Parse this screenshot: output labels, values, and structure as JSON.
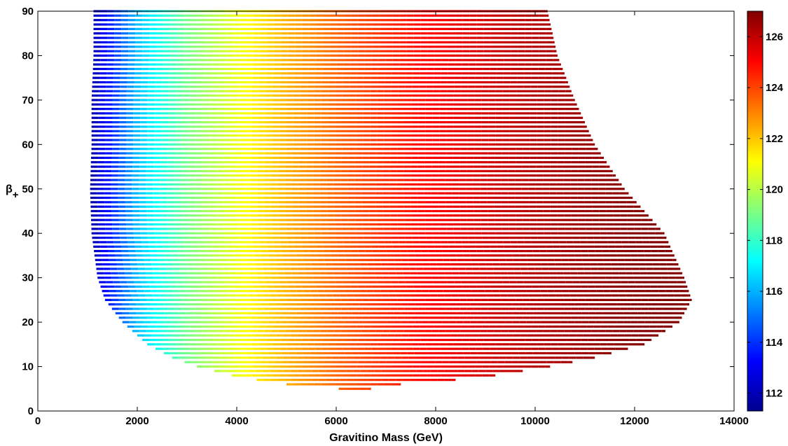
{
  "chart_data": {
    "type": "scatter",
    "title": "",
    "xlabel": "Gravitino Mass (GeV)",
    "ylabel_main": "β",
    "ylabel_sub": "+",
    "xlim": [
      0,
      14000
    ],
    "ylim": [
      0,
      90
    ],
    "xticks": [
      0,
      2000,
      4000,
      6000,
      8000,
      10000,
      12000,
      14000
    ],
    "yticks": [
      0,
      10,
      20,
      30,
      40,
      50,
      60,
      70,
      80,
      90
    ],
    "grid": false,
    "colorbar": {
      "colormap": "jet",
      "min": 111.3,
      "max": 127.0,
      "ticks": [
        112,
        114,
        116,
        118,
        120,
        122,
        124,
        126
      ]
    },
    "points_description_rows": {
      "beta_step": 1,
      "rows": [
        {
          "beta": 5,
          "x_min": 6050,
          "x_max": 6700
        },
        {
          "beta": 6,
          "x_min": 5000,
          "x_max": 7300
        },
        {
          "beta": 7,
          "x_min": 4400,
          "x_max": 8400
        },
        {
          "beta": 8,
          "x_min": 3900,
          "x_max": 9200
        },
        {
          "beta": 10,
          "x_min": 3200,
          "x_max": 10300
        },
        {
          "beta": 12,
          "x_min": 2700,
          "x_max": 11200
        },
        {
          "beta": 15,
          "x_min": 2200,
          "x_max": 12200
        },
        {
          "beta": 20,
          "x_min": 1700,
          "x_max": 12900
        },
        {
          "beta": 25,
          "x_min": 1350,
          "x_max": 13150
        },
        {
          "beta": 30,
          "x_min": 1200,
          "x_max": 13000
        },
        {
          "beta": 40,
          "x_min": 1080,
          "x_max": 12600
        },
        {
          "beta": 50,
          "x_min": 1050,
          "x_max": 11800
        },
        {
          "beta": 60,
          "x_min": 1080,
          "x_max": 11200
        },
        {
          "beta": 70,
          "x_min": 1080,
          "x_max": 10800
        },
        {
          "beta": 80,
          "x_min": 1120,
          "x_max": 10450
        },
        {
          "beta": 90,
          "x_min": 1120,
          "x_max": 10250
        }
      ]
    },
    "higgs_mass_vs_x": [
      {
        "x": 1100,
        "value": 112.0
      },
      {
        "x": 2000,
        "value": 116.2
      },
      {
        "x": 3000,
        "value": 119.0
      },
      {
        "x": 4000,
        "value": 120.8
      },
      {
        "x": 5000,
        "value": 122.3
      },
      {
        "x": 6000,
        "value": 123.5
      },
      {
        "x": 7000,
        "value": 124.4
      },
      {
        "x": 8000,
        "value": 125.1
      },
      {
        "x": 9000,
        "value": 125.7
      },
      {
        "x": 10000,
        "value": 126.2
      },
      {
        "x": 11000,
        "value": 126.6
      },
      {
        "x": 12000,
        "value": 126.9
      },
      {
        "x": 13200,
        "value": 127.0
      }
    ]
  }
}
